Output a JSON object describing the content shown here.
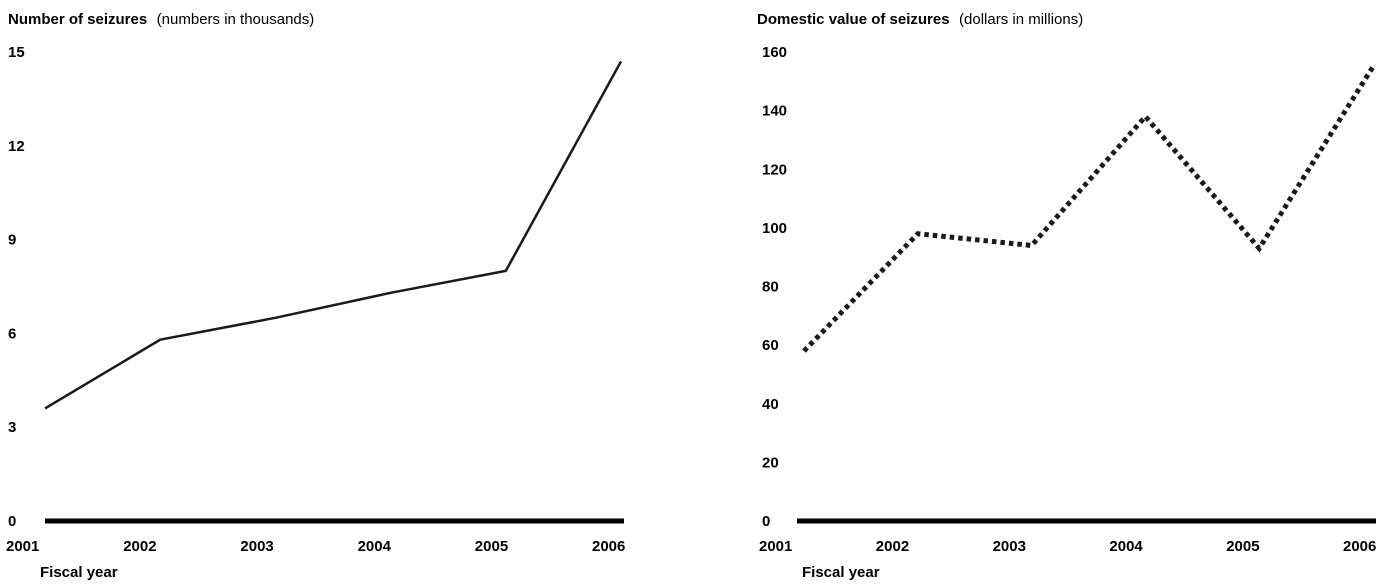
{
  "chart_data": [
    {
      "type": "line",
      "title": "Number of seizures",
      "subtitle": "(numbers in thousands)",
      "xlabel": "Fiscal year",
      "ylabel": "",
      "x": [
        "2001",
        "2002",
        "2003",
        "2004",
        "2005",
        "2006"
      ],
      "y_ticks": [
        "0",
        "3",
        "6",
        "9",
        "12",
        "15"
      ],
      "ylim": [
        0,
        15
      ],
      "series": [
        {
          "values": [
            3.6,
            5.8,
            6.5,
            7.3,
            8.0,
            14.7
          ],
          "color": "#1a1a1a",
          "style": "solid"
        }
      ],
      "grid": false
    },
    {
      "type": "line",
      "title": "Domestic value of seizures",
      "subtitle": "(dollars in millions)",
      "xlabel": "Fiscal year",
      "ylabel": "",
      "x": [
        "2001",
        "2002",
        "2003",
        "2004",
        "2005",
        "2006"
      ],
      "y_ticks": [
        "0",
        "20",
        "40",
        "60",
        "80",
        "100",
        "120",
        "140",
        "160"
      ],
      "ylim": [
        0,
        160
      ],
      "series": [
        {
          "values": [
            58,
            98,
            94,
            138,
            93,
            155
          ],
          "color": "#1a1a1a",
          "style": "dotted"
        }
      ],
      "grid": false
    }
  ]
}
